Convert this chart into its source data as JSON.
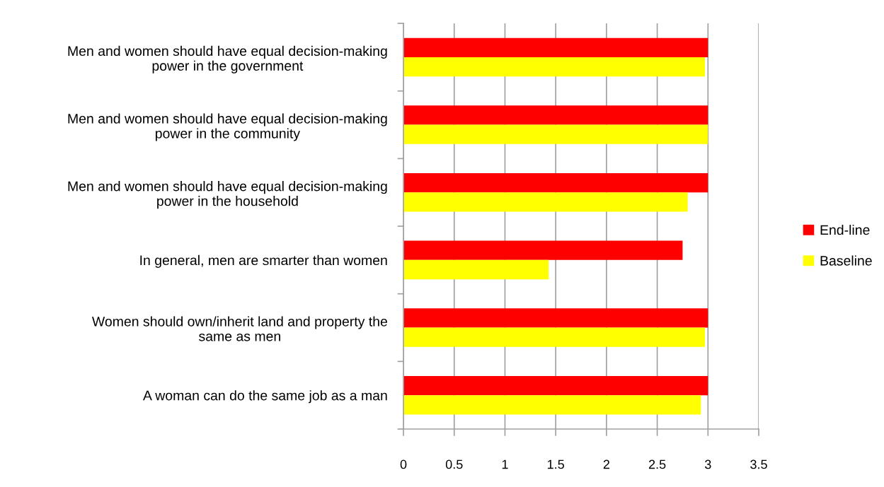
{
  "chart_data": {
    "type": "bar",
    "orientation": "horizontal",
    "categories": [
      "Men and women should have equal decision-making power in the government",
      "Men and women should have equal decision-making power in the community",
      "Men and women should have equal decision-making power in the household",
      "In general, men are smarter than women",
      "Women should own/inherit land and property the same as men",
      "A woman can do the same job as a man"
    ],
    "series": [
      {
        "name": "End-line",
        "color": "#ff0000",
        "values": [
          3,
          3,
          3,
          2.75,
          3,
          3
        ]
      },
      {
        "name": "Baseline",
        "color": "#ffff00",
        "values": [
          2.97,
          3,
          2.8,
          1.43,
          2.97,
          2.93
        ]
      }
    ],
    "xlim": [
      0,
      3.5
    ],
    "xticks": [
      0,
      0.5,
      1,
      1.5,
      2,
      2.5,
      3,
      3.5
    ],
    "grid": "x",
    "legend": "right"
  }
}
